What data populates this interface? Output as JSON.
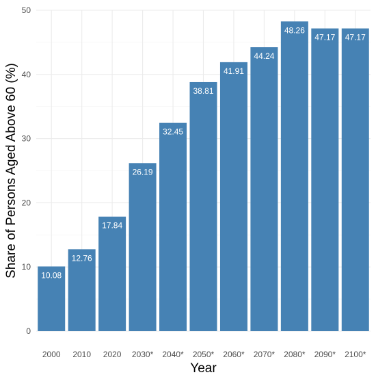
{
  "chart_data": {
    "type": "bar",
    "title": "",
    "xlabel": "Year",
    "ylabel": "Share of Persons Aged Above 60 (%)",
    "categories": [
      "2000",
      "2010",
      "2020",
      "2030*",
      "2040*",
      "2050*",
      "2060*",
      "2070*",
      "2080*",
      "2090*",
      "2100*"
    ],
    "values": [
      10.08,
      12.76,
      17.84,
      26.19,
      32.45,
      38.81,
      41.91,
      44.24,
      48.26,
      47.17,
      47.17
    ],
    "data_labels": [
      "10.08",
      "12.76",
      "17.84",
      "26.19",
      "32.45",
      "38.81",
      "41.91",
      "44.24",
      "48.26",
      "47.17",
      "47.17"
    ],
    "ylim": [
      0,
      50
    ],
    "yticks": [
      0,
      10,
      20,
      30,
      40,
      50
    ],
    "ytick_labels": [
      "0",
      "10",
      "20",
      "30",
      "40",
      "50"
    ],
    "grid": true,
    "legend": "none",
    "colors": {
      "bar": "#4682b4",
      "bar_label": "#ffffff",
      "grid": "#ebebeb",
      "tick_label": "#4d4d4d",
      "axis_title": "#000000"
    }
  }
}
